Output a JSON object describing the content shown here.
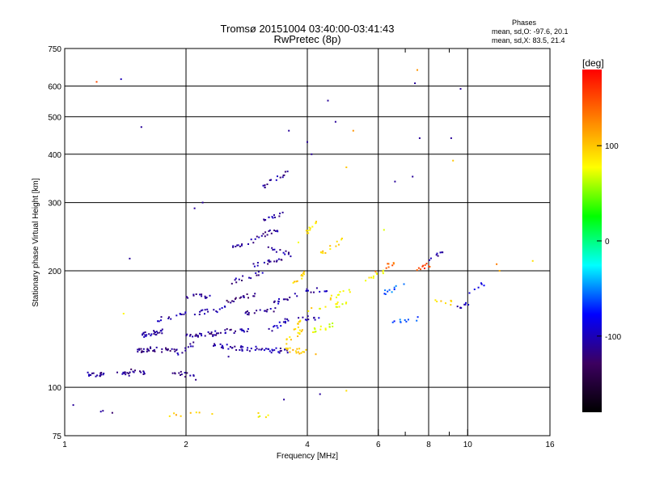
{
  "chart_data": {
    "type": "scatter",
    "title": "Tromsø 20151004 03:40:00-03:41:43",
    "subtitle": "RwPretec (8p)",
    "xlabel": "Frequency [MHz]",
    "ylabel": "Stationary phase Virtual Height [km]",
    "xscale": "log",
    "yscale": "log",
    "xlim": [
      1,
      16
    ],
    "ylim": [
      75,
      750
    ],
    "x_ticks": [
      1,
      2,
      4,
      6,
      8,
      10,
      16
    ],
    "x_tick_labels": [
      "1",
      "2",
      "4",
      "6",
      "8",
      "10",
      "16"
    ],
    "x_minor_ticks": [
      7,
      9
    ],
    "y_ticks": [
      75,
      100,
      200,
      300,
      400,
      500,
      600,
      750
    ],
    "y_tick_labels": [
      "75",
      "100",
      "200",
      "300",
      "400",
      "500",
      "600",
      "750"
    ],
    "grid": true,
    "stats_box": {
      "heading": "Phases",
      "line_o": "mean, sd,O: -97.6, 20.1",
      "line_x": "mean, sd,X:  83.5, 21.4"
    },
    "colorbar": {
      "label": "[deg]",
      "range": [
        -180,
        180
      ],
      "ticks": [
        100,
        0,
        -100
      ],
      "tick_labels": [
        "100",
        "0",
        "-100"
      ],
      "colors": [
        "#ff0000",
        "#ff7f00",
        "#ffff00",
        "#00ff00",
        "#00ffff",
        "#0000ff",
        "#3c0060",
        "#000000"
      ]
    },
    "clusters": [
      {
        "x": [
          1.12,
          1.25
        ],
        "y": [
          108,
          108
        ],
        "phase": -110,
        "n": 18
      },
      {
        "x": [
          1.2,
          1.32
        ],
        "y": [
          88,
          86
        ],
        "phase": -110,
        "n": 3
      },
      {
        "x": [
          1.35,
          1.45
        ],
        "y": [
          110,
          108
        ],
        "phase": -110,
        "n": 10
      },
      {
        "x": [
          1.45,
          1.6
        ],
        "y": [
          110,
          108
        ],
        "phase": -115,
        "n": 12
      },
      {
        "x": [
          1.5,
          1.65
        ],
        "y": [
          125,
          125
        ],
        "phase": -120,
        "n": 14
      },
      {
        "x": [
          1.5,
          1.75
        ],
        "y": [
          135,
          140
        ],
        "phase": -110,
        "n": 25
      },
      {
        "x": [
          1.6,
          1.9
        ],
        "y": [
          126,
          124
        ],
        "phase": -115,
        "n": 22
      },
      {
        "x": [
          1.7,
          2.0
        ],
        "y": [
          150,
          155
        ],
        "phase": -110,
        "n": 14
      },
      {
        "x": [
          1.85,
          2.2
        ],
        "y": [
          110,
          105
        ],
        "phase": -110,
        "n": 14
      },
      {
        "x": [
          1.9,
          2.1
        ],
        "y": [
          122,
          130
        ],
        "phase": -110,
        "n": 10
      },
      {
        "x": [
          2.0,
          2.4
        ],
        "y": [
          135,
          138
        ],
        "phase": -110,
        "n": 25
      },
      {
        "x": [
          2.0,
          2.3
        ],
        "y": [
          172,
          172
        ],
        "phase": -110,
        "n": 14
      },
      {
        "x": [
          2.1,
          2.5
        ],
        "y": [
          155,
          160
        ],
        "phase": -105,
        "n": 16
      },
      {
        "x": [
          2.3,
          2.8
        ],
        "y": [
          128,
          126
        ],
        "phase": -110,
        "n": 24
      },
      {
        "x": [
          2.4,
          2.9
        ],
        "y": [
          140,
          140
        ],
        "phase": -110,
        "n": 18
      },
      {
        "x": [
          2.5,
          3.0
        ],
        "y": [
          165,
          175
        ],
        "phase": -115,
        "n": 18
      },
      {
        "x": [
          2.6,
          3.2
        ],
        "y": [
          188,
          200
        ],
        "phase": -110,
        "n": 14
      },
      {
        "x": [
          2.6,
          3.0
        ],
        "y": [
          230,
          240
        ],
        "phase": -110,
        "n": 12
      },
      {
        "x": [
          2.8,
          3.4
        ],
        "y": [
          155,
          160
        ],
        "phase": -110,
        "n": 16
      },
      {
        "x": [
          2.8,
          3.6
        ],
        "y": [
          126,
          124
        ],
        "phase": -105,
        "n": 30
      },
      {
        "x": [
          2.9,
          3.5
        ],
        "y": [
          205,
          215
        ],
        "phase": -110,
        "n": 16
      },
      {
        "x": [
          3.0,
          3.4
        ],
        "y": [
          245,
          255
        ],
        "phase": -110,
        "n": 14
      },
      {
        "x": [
          3.1,
          3.5
        ],
        "y": [
          270,
          280
        ],
        "phase": -110,
        "n": 12
      },
      {
        "x": [
          3.1,
          3.6
        ],
        "y": [
          330,
          360
        ],
        "phase": -110,
        "n": 16
      },
      {
        "x": [
          3.2,
          3.7
        ],
        "y": [
          230,
          220
        ],
        "phase": -110,
        "n": 12
      },
      {
        "x": [
          3.2,
          3.6
        ],
        "y": [
          140,
          150
        ],
        "phase": -100,
        "n": 14
      },
      {
        "x": [
          3.3,
          3.8
        ],
        "y": [
          165,
          175
        ],
        "phase": -105,
        "n": 14
      },
      {
        "x": [
          3.5,
          3.9
        ],
        "y": [
          130,
          140
        ],
        "phase": 90,
        "n": 12
      },
      {
        "x": [
          3.5,
          4.2
        ],
        "y": [
          125,
          123
        ],
        "phase": 100,
        "n": 18
      },
      {
        "x": [
          3.6,
          4.0
        ],
        "y": [
          180,
          200
        ],
        "phase": 95,
        "n": 12
      },
      {
        "x": [
          3.7,
          4.1
        ],
        "y": [
          140,
          160
        ],
        "phase": 95,
        "n": 10
      },
      {
        "x": [
          3.8,
          4.3
        ],
        "y": [
          240,
          270
        ],
        "phase": 85,
        "n": 12
      },
      {
        "x": [
          3.8,
          4.4
        ],
        "y": [
          150,
          152
        ],
        "phase": -105,
        "n": 10
      },
      {
        "x": [
          3.9,
          4.5
        ],
        "y": [
          178,
          178
        ],
        "phase": -105,
        "n": 10
      },
      {
        "x": [
          4.1,
          4.7
        ],
        "y": [
          140,
          145
        ],
        "phase": 75,
        "n": 14
      },
      {
        "x": [
          4.2,
          5.0
        ],
        "y": [
          160,
          165
        ],
        "phase": 75,
        "n": 12
      },
      {
        "x": [
          4.3,
          4.9
        ],
        "y": [
          220,
          240
        ],
        "phase": 95,
        "n": 12
      },
      {
        "x": [
          4.5,
          5.2
        ],
        "y": [
          170,
          180
        ],
        "phase": 85,
        "n": 10
      },
      {
        "x": [
          5.5,
          6.2
        ],
        "y": [
          185,
          200
        ],
        "phase": 80,
        "n": 10
      },
      {
        "x": [
          5.8,
          6.6
        ],
        "y": [
          200,
          210
        ],
        "phase": 140,
        "n": 8
      },
      {
        "x": [
          6.2,
          7.0
        ],
        "y": [
          175,
          185
        ],
        "phase": -60,
        "n": 10
      },
      {
        "x": [
          6.5,
          7.6
        ],
        "y": [
          148,
          150
        ],
        "phase": -60,
        "n": 10
      },
      {
        "x": [
          7.2,
          8.2
        ],
        "y": [
          195,
          210
        ],
        "phase": 150,
        "n": 10
      },
      {
        "x": [
          8.0,
          8.8
        ],
        "y": [
          215,
          225
        ],
        "phase": -110,
        "n": 8
      },
      {
        "x": [
          8.3,
          9.2
        ],
        "y": [
          168,
          165
        ],
        "phase": 90,
        "n": 8
      },
      {
        "x": [
          9.0,
          10.2
        ],
        "y": [
          160,
          165
        ],
        "phase": -100,
        "n": 8
      },
      {
        "x": [
          10.0,
          11.0
        ],
        "y": [
          175,
          185
        ],
        "phase": -80,
        "n": 6
      },
      {
        "x": [
          1.8,
          2.4
        ],
        "y": [
          85,
          85
        ],
        "phase": 100,
        "n": 8
      },
      {
        "x": [
          3.0,
          3.3
        ],
        "y": [
          85,
          84
        ],
        "phase": 80,
        "n": 5
      }
    ],
    "sparse_points": [
      {
        "x": 1.2,
        "y": 615,
        "phase": 150
      },
      {
        "x": 1.38,
        "y": 625,
        "phase": -100
      },
      {
        "x": 1.55,
        "y": 470,
        "phase": -110
      },
      {
        "x": 1.45,
        "y": 215,
        "phase": -110
      },
      {
        "x": 1.4,
        "y": 155,
        "phase": 80
      },
      {
        "x": 2.1,
        "y": 290,
        "phase": -110
      },
      {
        "x": 2.2,
        "y": 300,
        "phase": -110
      },
      {
        "x": 3.6,
        "y": 460,
        "phase": -110
      },
      {
        "x": 4.0,
        "y": 430,
        "phase": -110
      },
      {
        "x": 4.1,
        "y": 400,
        "phase": -110
      },
      {
        "x": 4.5,
        "y": 550,
        "phase": -110
      },
      {
        "x": 4.7,
        "y": 485,
        "phase": -110
      },
      {
        "x": 5.0,
        "y": 370,
        "phase": 100
      },
      {
        "x": 5.2,
        "y": 460,
        "phase": 120
      },
      {
        "x": 6.2,
        "y": 255,
        "phase": 70
      },
      {
        "x": 6.6,
        "y": 340,
        "phase": -110
      },
      {
        "x": 7.4,
        "y": 610,
        "phase": -110
      },
      {
        "x": 7.6,
        "y": 440,
        "phase": -110
      },
      {
        "x": 7.3,
        "y": 350,
        "phase": -110
      },
      {
        "x": 7.5,
        "y": 660,
        "phase": 120
      },
      {
        "x": 9.6,
        "y": 590,
        "phase": -110
      },
      {
        "x": 9.1,
        "y": 440,
        "phase": -110
      },
      {
        "x": 9.2,
        "y": 385,
        "phase": 100
      },
      {
        "x": 12.0,
        "y": 200,
        "phase": 110
      },
      {
        "x": 14.5,
        "y": 212,
        "phase": 90
      },
      {
        "x": 11.8,
        "y": 208,
        "phase": 130
      },
      {
        "x": 4.3,
        "y": 96,
        "phase": -110
      },
      {
        "x": 5.0,
        "y": 98,
        "phase": 90
      },
      {
        "x": 3.5,
        "y": 93,
        "phase": -110
      },
      {
        "x": 2.55,
        "y": 120,
        "phase": -110
      },
      {
        "x": 1.05,
        "y": 90,
        "phase": -110
      }
    ]
  }
}
